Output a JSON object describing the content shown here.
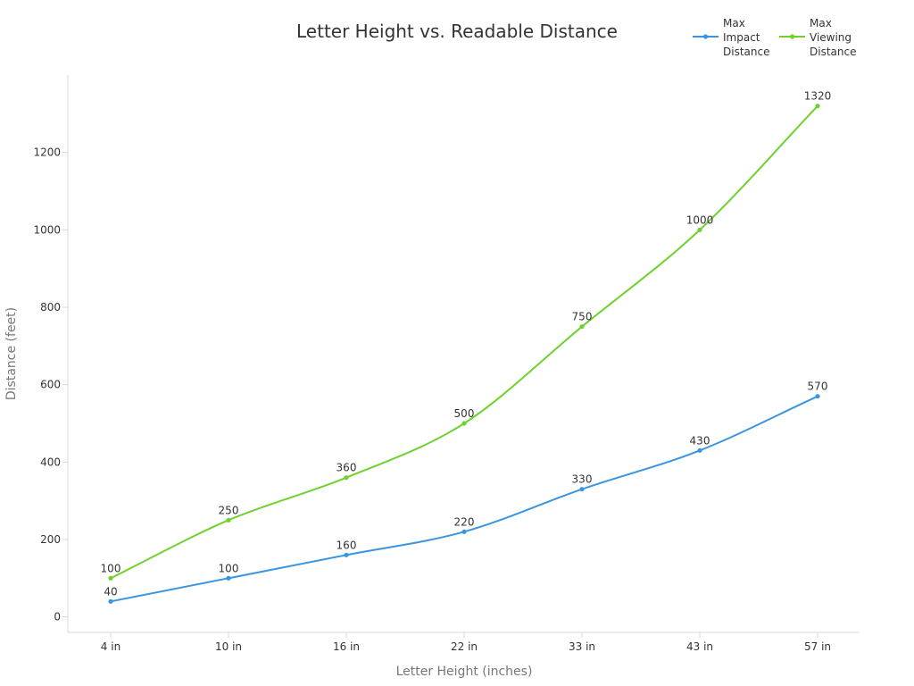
{
  "chart_data": {
    "type": "line",
    "title": "Letter Height vs. Readable Distance",
    "xlabel": "Letter Height (inches)",
    "ylabel": "Distance (feet)",
    "categories": [
      "4 in",
      "10 in",
      "16 in",
      "22 in",
      "33 in",
      "43 in",
      "57 in"
    ],
    "series": [
      {
        "name": "Max Impact Distance",
        "legend_lines": [
          "Max",
          "Impact",
          "Distance"
        ],
        "color": "#3a95e0",
        "values": [
          40,
          100,
          160,
          220,
          330,
          430,
          570
        ]
      },
      {
        "name": "Max Viewing Distance",
        "legend_lines": [
          "Max",
          "Viewing",
          "Distance"
        ],
        "color": "#6fd12e",
        "values": [
          100,
          250,
          360,
          500,
          750,
          1000,
          1320
        ]
      }
    ],
    "yticks": [
      0,
      200,
      400,
      600,
      800,
      1000,
      1200
    ],
    "ylim": [
      -40,
      1400
    ],
    "grid": false,
    "legend_position": "top-right",
    "axis_color": "#d9d9d9"
  }
}
